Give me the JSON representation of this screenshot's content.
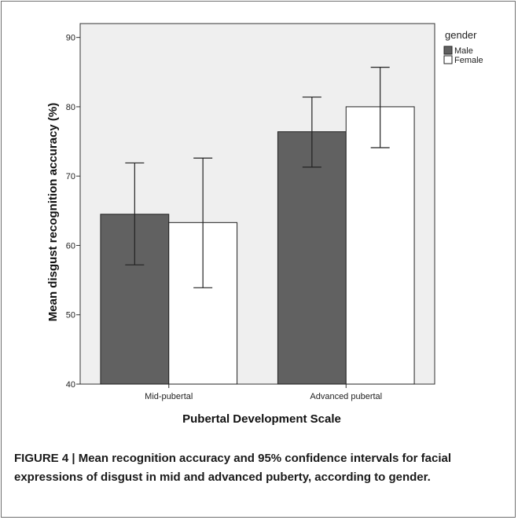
{
  "chart_data": {
    "type": "bar",
    "categories": [
      "Mid-pubertal",
      "Advanced pubertal"
    ],
    "series": [
      {
        "name": "Male",
        "values": [
          64.5,
          76.4
        ],
        "ci_low": [
          57.2,
          71.3
        ],
        "ci_high": [
          71.9,
          81.4
        ],
        "color": "#616161"
      },
      {
        "name": "Female",
        "values": [
          63.3,
          80.0
        ],
        "ci_low": [
          53.9,
          74.1
        ],
        "ci_high": [
          72.6,
          85.7
        ],
        "color": "#ffffff"
      }
    ],
    "xlabel": "Pubertal Development Scale",
    "ylabel": "Mean disgust recognition accuracy (%)",
    "ylim": [
      40,
      92
    ],
    "yticks": [
      40,
      50,
      60,
      70,
      80,
      90
    ],
    "legend_title": "gender",
    "legend_position": "top-right",
    "plot_background": "#efefef",
    "grid": false
  },
  "caption": "FIGURE 4 | Mean recognition accuracy and 95% confidence intervals for facial expressions of disgust in mid and advanced puberty, according to gender."
}
